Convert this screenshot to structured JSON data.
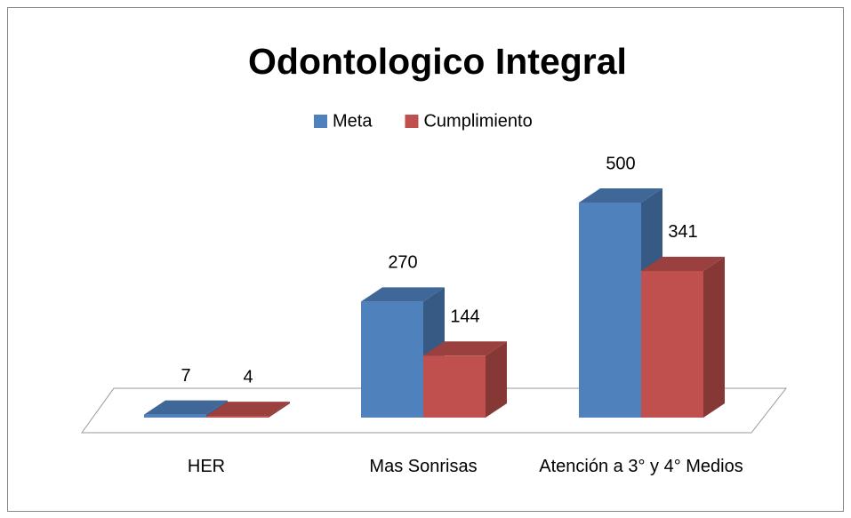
{
  "chart_data": {
    "type": "bar3d",
    "title": "Odontologico Integral",
    "categories": [
      "HER",
      "Mas Sonrisas",
      "Atención a 3° y 4° Medios"
    ],
    "series": [
      {
        "name": "Meta",
        "color": "#4f81bd",
        "values": [
          7,
          270,
          500
        ]
      },
      {
        "name": "Cumplimiento",
        "color": "#c0504d",
        "values": [
          4,
          144,
          341
        ]
      }
    ],
    "legend": "top"
  }
}
